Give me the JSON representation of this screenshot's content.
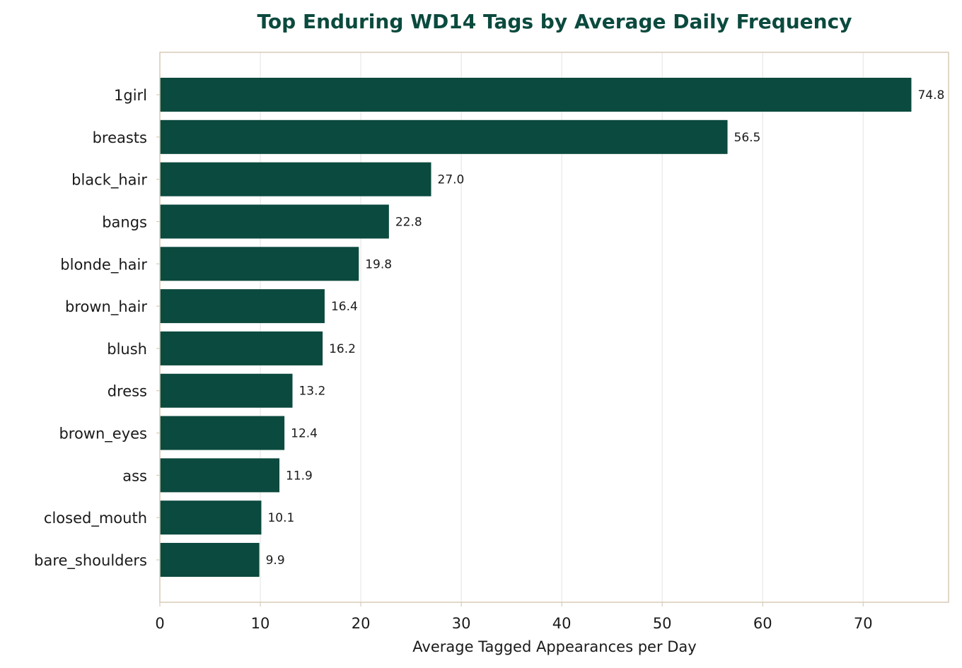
{
  "chart_data": {
    "type": "bar",
    "orientation": "horizontal",
    "title": "Top Enduring WD14 Tags by Average Daily Frequency",
    "xlabel": "Average Tagged Appearances per Day",
    "ylabel": "",
    "xlim": [
      0,
      78.5
    ],
    "xticks": [
      0,
      10,
      20,
      30,
      40,
      50,
      60,
      70
    ],
    "xtick_labels": [
      "0",
      "10",
      "20",
      "30",
      "40",
      "50",
      "60",
      "70"
    ],
    "grid": "vertical",
    "categories": [
      "1girl",
      "breasts",
      "black_hair",
      "bangs",
      "blonde_hair",
      "brown_hair",
      "blush",
      "dress",
      "brown_eyes",
      "ass",
      "closed_mouth",
      "bare_shoulders"
    ],
    "values": [
      74.8,
      56.5,
      27.0,
      22.8,
      19.8,
      16.4,
      16.2,
      13.2,
      12.4,
      11.9,
      10.1,
      9.9
    ],
    "value_labels": [
      "74.8",
      "56.5",
      "27.0",
      "22.8",
      "19.8",
      "16.4",
      "16.2",
      "13.2",
      "12.4",
      "11.9",
      "10.1",
      "9.9"
    ],
    "colors": {
      "bar": "#0b4a3e",
      "title": "#0b4a3e",
      "frame": "#d8cbb8",
      "grid": "#e8e8e8",
      "text": "#1a1a1a"
    }
  }
}
